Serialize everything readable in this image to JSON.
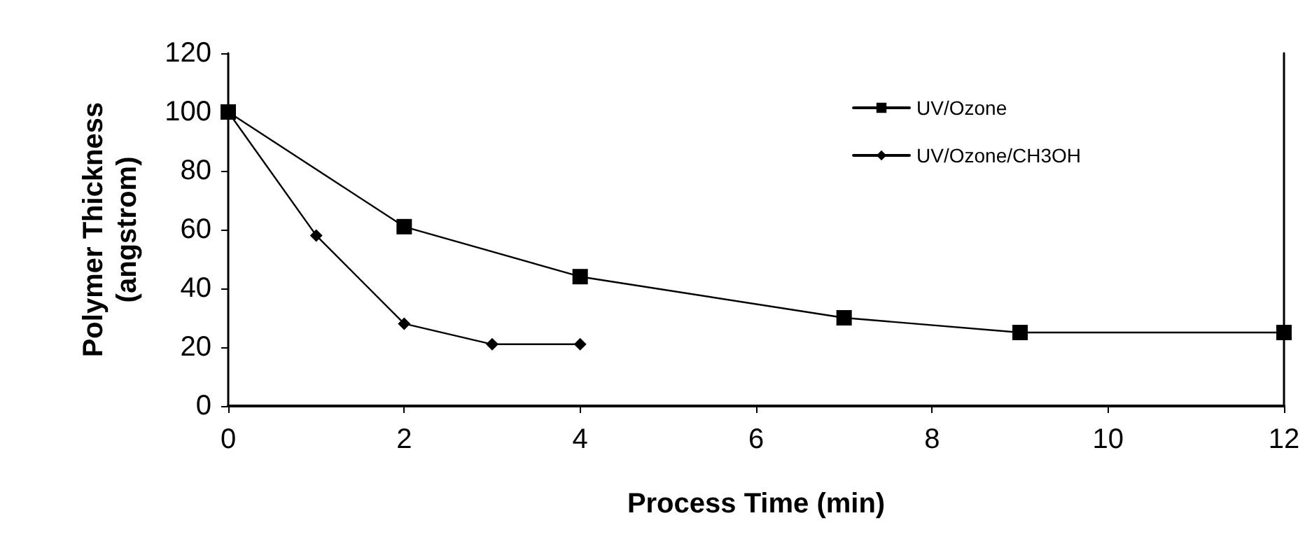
{
  "chart_data": {
    "type": "line",
    "xlabel": "Process Time (min)",
    "ylabel": "Polymer Thickness\n(angstrom)",
    "xlim": [
      0,
      12
    ],
    "xticks": [
      0,
      2,
      4,
      6,
      8,
      10,
      12
    ],
    "ylim": [
      0,
      120
    ],
    "yticks": [
      0,
      20,
      40,
      60,
      80,
      100,
      120
    ],
    "grid": false,
    "legend": "top right",
    "line_style": "solid",
    "series": [
      {
        "name": "UV/Ozone",
        "color": "#000000",
        "marker": "square",
        "x": [
          0,
          2,
          4,
          7,
          9,
          12
        ],
        "values": [
          100,
          61,
          44,
          30,
          25,
          25
        ]
      },
      {
        "name": "UV/Ozone/CH3OH",
        "color": "#000000",
        "marker": "diamond",
        "x": [
          0,
          1,
          2,
          3,
          4
        ],
        "values": [
          100,
          58,
          28,
          21,
          21
        ]
      }
    ]
  }
}
